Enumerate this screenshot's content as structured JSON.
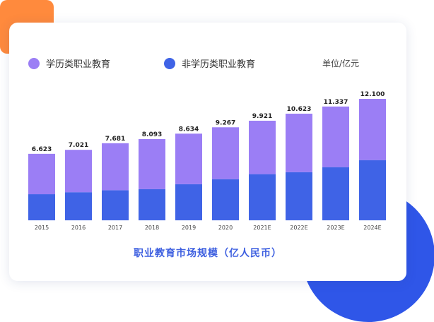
{
  "colors": {
    "academic": "#9b7ef5",
    "non_academic": "#3f63e6",
    "orange_accent": "#ff8a3d",
    "blue_accent": "#2f56e8",
    "title": "#3d5fe0"
  },
  "legend": [
    {
      "label": "学历类职业教育",
      "color": "#9b7ef5"
    },
    {
      "label": "非学历类职业教育",
      "color": "#3f63e6"
    }
  ],
  "unit_label": "单位/亿元",
  "chart_data": {
    "type": "bar",
    "stacked": true,
    "title": "职业教育市场规模（亿人民币）",
    "categories": [
      "2015",
      "2016",
      "2017",
      "2018",
      "2019",
      "2020",
      "2021E",
      "2022E",
      "2023E",
      "2024E"
    ],
    "totals": [
      "6.623",
      "7.021",
      "7.681",
      "8.093",
      "8.634",
      "9.267",
      "9.921",
      "10.623",
      "11.337",
      "12.100"
    ],
    "series": [
      {
        "name": "非学历类职业教育",
        "color": "#3f63e6",
        "values": [
          2.6,
          2.8,
          3.0,
          3.1,
          3.6,
          4.1,
          4.6,
          4.8,
          5.3,
          6.0
        ]
      },
      {
        "name": "学历类职业教育",
        "color": "#9b7ef5",
        "values": [
          4.023,
          4.221,
          4.681,
          4.993,
          5.034,
          5.167,
          5.321,
          5.823,
          6.037,
          6.1
        ]
      }
    ],
    "ylim": [
      0,
      12.1
    ],
    "grid": false,
    "legend_position": "top-left"
  }
}
